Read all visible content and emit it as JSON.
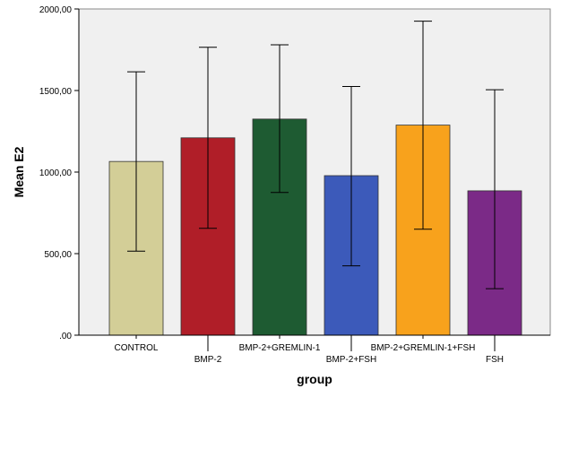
{
  "chart_data": {
    "type": "bar",
    "xlabel": "group",
    "ylabel": "Mean E2",
    "ylim": [
      0,
      2000
    ],
    "y_ticks": [
      ".00",
      "500,00",
      "1000,00",
      "1500,00",
      "2000,00"
    ],
    "y_tick_values": [
      0,
      500,
      1000,
      1500,
      2000
    ],
    "grid": false,
    "background_color": "#f0f0f0",
    "categories": [
      "CONTROL",
      "BMP-2",
      "BMP-2+GREMLIN-1",
      "BMP-2+FSH",
      "BMP-2+GREMLIN-1+FSH",
      "FSH"
    ],
    "values": [
      1065,
      1210,
      1325,
      978,
      1288,
      885
    ],
    "error_low": [
      515,
      655,
      875,
      425,
      650,
      285
    ],
    "error_high": [
      1615,
      1765,
      1780,
      1525,
      1925,
      1505
    ],
    "colors": [
      "#d3ce97",
      "#b01e28",
      "#1e5b32",
      "#3c5aba",
      "#f8a21c",
      "#7b2a87"
    ]
  }
}
